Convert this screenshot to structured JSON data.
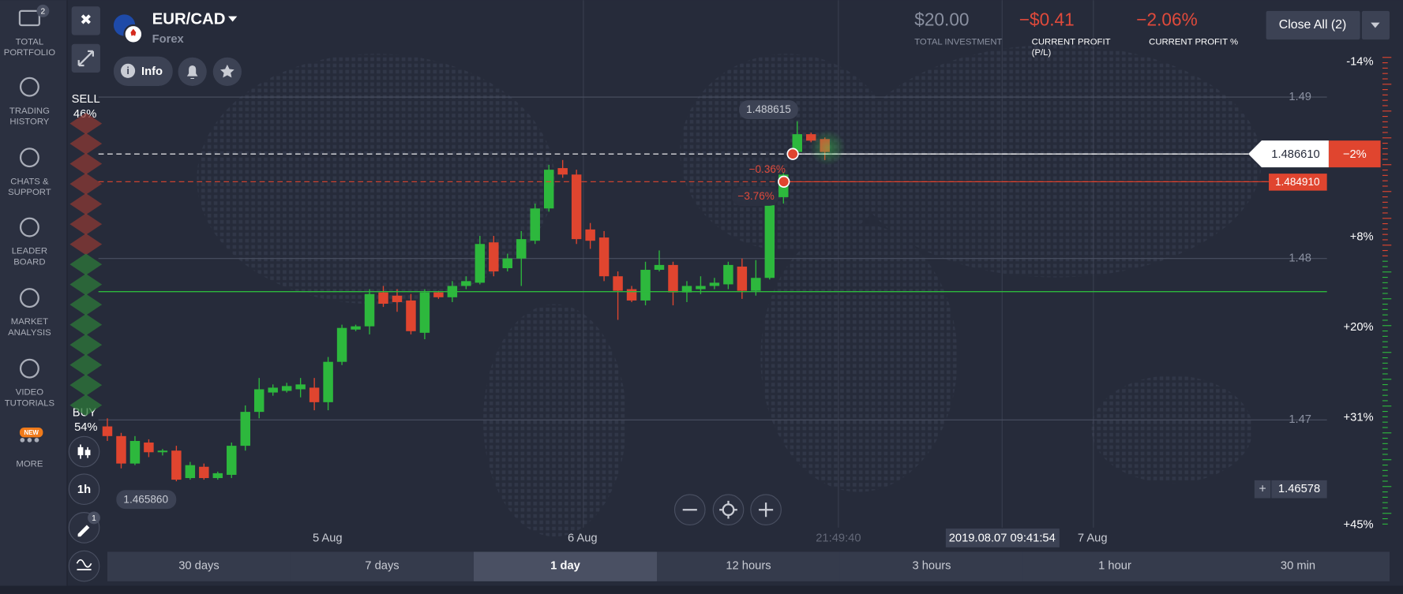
{
  "sidebar": [
    {
      "lines": [
        "TOTAL",
        "PORTFOLIO"
      ],
      "badge": "2"
    },
    {
      "lines": [
        "TRADING",
        "HISTORY"
      ]
    },
    {
      "lines": [
        "CHATS &",
        "SUPPORT"
      ]
    },
    {
      "lines": [
        "LEADER",
        "BOARD"
      ]
    },
    {
      "lines": [
        "MARKET",
        "ANALYSIS"
      ]
    },
    {
      "lines": [
        "VIDEO",
        "TUTORIALS"
      ]
    },
    {
      "lines": [
        "MORE"
      ],
      "badge": "NEW"
    }
  ],
  "asset": {
    "name": "EUR/CAD",
    "market": "Forex",
    "info": "Info"
  },
  "stats": [
    {
      "value": "$20.00",
      "label": [
        "TOTAL INVESTMENT"
      ]
    },
    {
      "value": "−$0.41",
      "label": [
        "CURRENT PROFIT",
        "(P/L)"
      ]
    },
    {
      "value": "−2.06%",
      "label": [
        "CURRENT PROFIT %"
      ]
    }
  ],
  "close_all": "Close All (2)",
  "sentiment": {
    "sell": "SELL",
    "sell_pct": "46%",
    "buy": "BUY",
    "buy_pct": "54%"
  },
  "tools": {
    "interval": "1h",
    "drawings": "1"
  },
  "chart": {
    "type": "candlestick",
    "ylim": [
      1.462,
      1.496
    ],
    "yticks": [
      1.49,
      1.48,
      1.47
    ],
    "grid": true,
    "up_color": "#2db83d",
    "down_color": "#e0452f",
    "candles": [
      {
        "open": 1.4696,
        "high": 1.4701,
        "low": 1.4687,
        "close": 1.469
      },
      {
        "open": 1.469,
        "high": 1.4692,
        "low": 1.467,
        "close": 1.4673
      },
      {
        "open": 1.4673,
        "high": 1.469,
        "low": 1.4672,
        "close": 1.4687
      },
      {
        "open": 1.4686,
        "high": 1.4688,
        "low": 1.4677,
        "close": 1.468
      },
      {
        "open": 1.468,
        "high": 1.4682,
        "low": 1.4678,
        "close": 1.4681
      },
      {
        "open": 1.4681,
        "high": 1.4684,
        "low": 1.4662,
        "close": 1.4663
      },
      {
        "open": 1.4664,
        "high": 1.4674,
        "low": 1.4663,
        "close": 1.4672
      },
      {
        "open": 1.4671,
        "high": 1.4673,
        "low": 1.4663,
        "close": 1.4664
      },
      {
        "open": 1.4664,
        "high": 1.4668,
        "low": 1.4663,
        "close": 1.4667
      },
      {
        "open": 1.4666,
        "high": 1.4686,
        "low": 1.4664,
        "close": 1.4684
      },
      {
        "open": 1.4684,
        "high": 1.4709,
        "low": 1.4681,
        "close": 1.4705
      },
      {
        "open": 1.4705,
        "high": 1.4726,
        "low": 1.4701,
        "close": 1.4719
      },
      {
        "open": 1.4717,
        "high": 1.4722,
        "low": 1.4715,
        "close": 1.472
      },
      {
        "open": 1.4718,
        "high": 1.4723,
        "low": 1.4717,
        "close": 1.4721
      },
      {
        "open": 1.4719,
        "high": 1.4726,
        "low": 1.4714,
        "close": 1.4722
      },
      {
        "open": 1.472,
        "high": 1.4726,
        "low": 1.4706,
        "close": 1.4711
      },
      {
        "open": 1.4711,
        "high": 1.4739,
        "low": 1.4706,
        "close": 1.4736
      },
      {
        "open": 1.4736,
        "high": 1.4759,
        "low": 1.4734,
        "close": 1.4757
      },
      {
        "open": 1.4756,
        "high": 1.4759,
        "low": 1.4755,
        "close": 1.4758
      },
      {
        "open": 1.4758,
        "high": 1.4781,
        "low": 1.4753,
        "close": 1.4778
      },
      {
        "open": 1.4779,
        "high": 1.4783,
        "low": 1.477,
        "close": 1.4772
      },
      {
        "open": 1.4777,
        "high": 1.4781,
        "low": 1.4767,
        "close": 1.4773
      },
      {
        "open": 1.4774,
        "high": 1.4778,
        "low": 1.4753,
        "close": 1.4755
      },
      {
        "open": 1.4754,
        "high": 1.4781,
        "low": 1.475,
        "close": 1.4779
      },
      {
        "open": 1.4779,
        "high": 1.478,
        "low": 1.4775,
        "close": 1.4776
      },
      {
        "open": 1.4776,
        "high": 1.4786,
        "low": 1.4773,
        "close": 1.4783
      },
      {
        "open": 1.4783,
        "high": 1.4789,
        "low": 1.4781,
        "close": 1.4786
      },
      {
        "open": 1.4785,
        "high": 1.4814,
        "low": 1.4784,
        "close": 1.4809
      },
      {
        "open": 1.481,
        "high": 1.4814,
        "low": 1.4789,
        "close": 1.4792
      },
      {
        "open": 1.4794,
        "high": 1.4803,
        "low": 1.4792,
        "close": 1.48
      },
      {
        "open": 1.48,
        "high": 1.4817,
        "low": 1.4783,
        "close": 1.4812
      },
      {
        "open": 1.4811,
        "high": 1.4834,
        "low": 1.4809,
        "close": 1.4831
      },
      {
        "open": 1.4831,
        "high": 1.4858,
        "low": 1.4829,
        "close": 1.4855
      },
      {
        "open": 1.4856,
        "high": 1.4861,
        "low": 1.485,
        "close": 1.4852
      },
      {
        "open": 1.4852,
        "high": 1.4855,
        "low": 1.4809,
        "close": 1.4812
      },
      {
        "open": 1.4818,
        "high": 1.4822,
        "low": 1.4806,
        "close": 1.4811
      },
      {
        "open": 1.4813,
        "high": 1.4817,
        "low": 1.4786,
        "close": 1.4789
      },
      {
        "open": 1.4789,
        "high": 1.4792,
        "low": 1.4762,
        "close": 1.478
      },
      {
        "open": 1.4781,
        "high": 1.4783,
        "low": 1.4773,
        "close": 1.4774
      },
      {
        "open": 1.4774,
        "high": 1.4798,
        "low": 1.4771,
        "close": 1.4793
      },
      {
        "open": 1.4793,
        "high": 1.4805,
        "low": 1.4792,
        "close": 1.4796
      },
      {
        "open": 1.4796,
        "high": 1.4798,
        "low": 1.4771,
        "close": 1.4779
      },
      {
        "open": 1.4779,
        "high": 1.4786,
        "low": 1.4773,
        "close": 1.4783
      },
      {
        "open": 1.4781,
        "high": 1.4789,
        "low": 1.4778,
        "close": 1.4783
      },
      {
        "open": 1.4783,
        "high": 1.4788,
        "low": 1.4781,
        "close": 1.4785
      },
      {
        "open": 1.4784,
        "high": 1.4798,
        "low": 1.4781,
        "close": 1.4796
      },
      {
        "open": 1.4795,
        "high": 1.48,
        "low": 1.4775,
        "close": 1.478
      },
      {
        "open": 1.478,
        "high": 1.4799,
        "low": 1.4777,
        "close": 1.4788
      },
      {
        "open": 1.4788,
        "high": 1.4835,
        "low": 1.4787,
        "close": 1.4833
      },
      {
        "open": 1.4838,
        "high": 1.4853,
        "low": 1.4834,
        "close": 1.4852
      },
      {
        "open": 1.4866,
        "high": 1.4885,
        "low": 1.4864,
        "close": 1.4877
      },
      {
        "open": 1.4877,
        "high": 1.4878,
        "low": 1.4872,
        "close": 1.4873
      },
      {
        "open": 1.4874,
        "high": 1.4875,
        "low": 1.4861,
        "close": 1.4866
      }
    ],
    "price_labels": {
      "high": "1.488615",
      "low": "1.465860",
      "current": "1.486610",
      "current_change": "−2%",
      "deal": "1.484910",
      "deal_change": "−0.36%",
      "deal2_change": "−3.76%",
      "bottom": "1.46578"
    },
    "profit_scale": [
      "-14%",
      "+8%",
      "+20%",
      "+31%",
      "+45%"
    ],
    "time_labels": [
      "5 Aug",
      "6 Aug",
      "21:49:40",
      "7 Aug"
    ],
    "cursor_time": "2019.08.07 09:41:54"
  },
  "timeframes": [
    "30 days",
    "7 days",
    "1 day",
    "12 hours",
    "3 hours",
    "1 hour",
    "30 min"
  ],
  "active_timeframe": 2
}
